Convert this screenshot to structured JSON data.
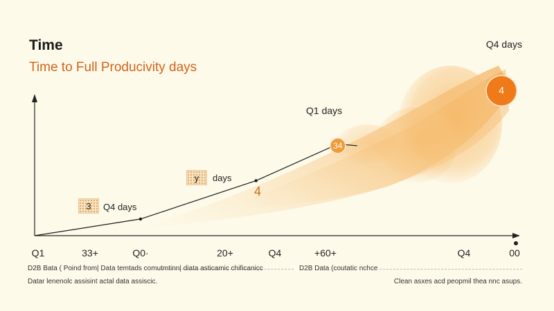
{
  "header": {
    "title": "Time",
    "subtitle": "Time to Full Producivity days",
    "top_right_label": "Q4 days"
  },
  "annotations": {
    "box1_text": "3",
    "box1_label": "Q4 days",
    "box2_text": "y",
    "box2_label": "days",
    "mid_marker": "4",
    "q1_label": "Q1 days"
  },
  "footer": {
    "left_line1": "D2B Bata ( Poind from| Data temtads comutmtinn| diata asticamic chificanicc",
    "left_line2": "Datar lenenolc assisint actal data assiscic.",
    "center": "D2B Data (coutatic nchce",
    "right": "Clean asxes acd peopmil thea nnc asups."
  },
  "colors": {
    "accent": "#d2631c",
    "bubble": "#ef7a1a",
    "mid_bubble": "#f09a35",
    "axis": "#222222",
    "background": "#fdfaea"
  },
  "chart_data": {
    "type": "line",
    "title": "Time",
    "subtitle": "Time to Full Producivity days",
    "x_tick_labels": [
      "Q1",
      "33+",
      "Q0·",
      "20+",
      "Q4",
      "+60+",
      "Q4",
      "00"
    ],
    "series": [
      {
        "values": [
          0,
          0.1,
          0.33,
          0.55,
          0.54
        ]
      }
    ],
    "x": [
      0,
      0.22,
      0.46,
      0.63,
      0.67
    ],
    "bubbles": [
      {
        "label": "34",
        "x": 0.63,
        "y": 0.54
      },
      {
        "label": "4",
        "x": 0.97,
        "y": 0.87
      }
    ],
    "ylim": [
      0,
      1
    ],
    "xlim": [
      0,
      1
    ],
    "grid": false,
    "legend": "none"
  }
}
